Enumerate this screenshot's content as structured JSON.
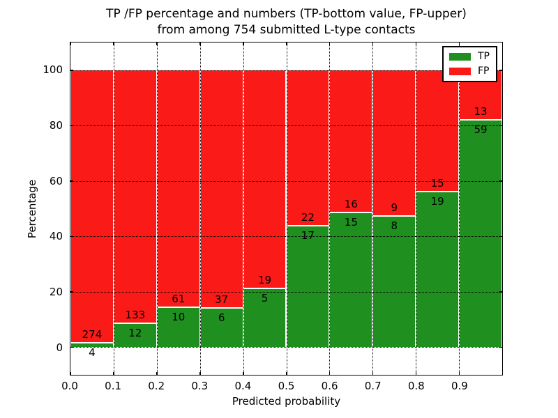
{
  "figure": {
    "title_line1": "TP /FP percentage and numbers (TP-bottom value, FP-upper)",
    "title_line2": "from among 754 submitted L-type contacts",
    "xlabel": "Predicted probability",
    "ylabel": "Percentage"
  },
  "legend": {
    "position": "upper right",
    "entries": [
      {
        "label": "TP",
        "color": "#1f8f1f"
      },
      {
        "label": "FP",
        "color": "#fa1a17"
      }
    ]
  },
  "chart_data": {
    "type": "bar",
    "stacked": true,
    "title": "TP /FP percentage and numbers (TP-bottom value, FP-upper) from among 754 submitted L-type contacts",
    "xlabel": "Predicted probability",
    "ylabel": "Percentage",
    "total_contacts": 754,
    "bins": [
      "0.0-0.1",
      "0.1-0.2",
      "0.2-0.3",
      "0.3-0.4",
      "0.4-0.5",
      "0.5-0.6",
      "0.6-0.7",
      "0.7-0.8",
      "0.8-0.9",
      "0.9-1.0"
    ],
    "series": [
      {
        "name": "TP",
        "color": "#1f8f1f",
        "counts": [
          4,
          12,
          10,
          6,
          5,
          17,
          15,
          8,
          19,
          59
        ]
      },
      {
        "name": "FP",
        "color": "#fa1a17",
        "counts": [
          274,
          133,
          61,
          37,
          19,
          22,
          16,
          9,
          15,
          13
        ]
      }
    ],
    "tp_percent": [
      1.44,
      8.28,
      14.08,
      13.95,
      20.83,
      43.59,
      48.39,
      47.06,
      55.88,
      81.94
    ],
    "bar_heights_are_percent_of_bin_total": true,
    "xlim": [
      0.0,
      1.0
    ],
    "ylim": [
      -10,
      110
    ],
    "xtick_labels": [
      "0.0",
      "0.1",
      "0.2",
      "0.3",
      "0.4",
      "0.5",
      "0.6",
      "0.7",
      "0.8",
      "0.9"
    ],
    "ytick_values": [
      0,
      20,
      40,
      60,
      80,
      100
    ],
    "grid": true,
    "grid_style": "dotted",
    "legend_position": "upper right"
  }
}
